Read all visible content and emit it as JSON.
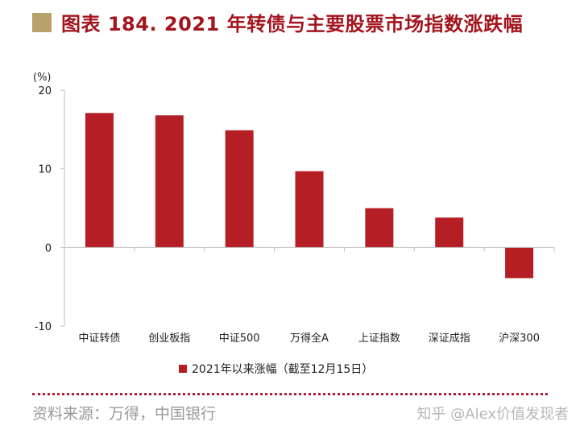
{
  "header": {
    "title": "图表 184. 2021 年转债与主要股票市场指数涨跌幅",
    "accent_square_color": "#b8a26c",
    "title_color": "#a3151e"
  },
  "chart_data": {
    "type": "bar",
    "title": "图表 184. 2021 年转债与主要股票市场指数涨跌幅",
    "ylabel": "(%)",
    "xlabel": "",
    "ylim": [
      -10,
      20
    ],
    "yticks": [
      -10,
      0,
      10,
      20
    ],
    "grid": false,
    "legend_position": "bottom",
    "categories": [
      "中证转债",
      "创业板指",
      "中证500",
      "万得全A",
      "上证指数",
      "深证成指",
      "沪深300"
    ],
    "series": [
      {
        "name": "2021年以来涨幅（截至12月15日）",
        "values": [
          17.1,
          16.8,
          14.9,
          9.7,
          5.0,
          3.8,
          -3.9
        ],
        "color": "#b41e24"
      }
    ]
  },
  "footer": {
    "source": "资料来源：万得，中国银行",
    "watermark": "知乎 @Alex价值发现者",
    "divider_color": "#b02030"
  }
}
